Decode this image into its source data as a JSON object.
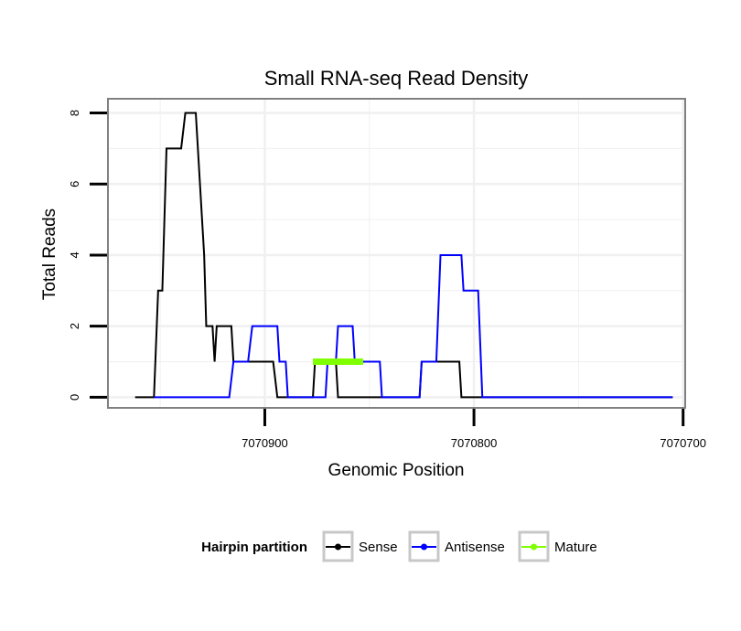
{
  "chart_data": {
    "type": "line",
    "title": "Small RNA-seq Read Density",
    "xlabel": "Genomic Position",
    "ylabel": "Total Reads",
    "x_reversed": true,
    "xlim": [
      7070975,
      7070699
    ],
    "ylim": [
      -0.3,
      8.4
    ],
    "x_ticks": [
      7070900,
      7070800,
      7070700
    ],
    "x_tick_labels": [
      "7070900",
      "7070800",
      "7070700"
    ],
    "y_ticks": [
      0,
      2,
      4,
      6,
      8
    ],
    "y_tick_labels": [
      "0",
      "2",
      "4",
      "6",
      "8"
    ],
    "grid": true,
    "legend_position": "bottom",
    "legend_title": "Hairpin partition",
    "series": [
      {
        "name": "Sense",
        "color": "#000000",
        "points": [
          [
            7070962,
            0
          ],
          [
            7070953,
            0
          ],
          [
            7070951,
            3
          ],
          [
            7070949,
            3
          ],
          [
            7070947,
            7
          ],
          [
            7070940,
            7
          ],
          [
            7070938,
            8
          ],
          [
            7070933,
            8
          ],
          [
            7070931,
            6
          ],
          [
            7070929,
            4
          ],
          [
            7070928,
            2
          ],
          [
            7070925,
            2
          ],
          [
            7070924,
            1
          ],
          [
            7070923,
            2
          ],
          [
            7070916,
            2
          ],
          [
            7070915,
            1
          ],
          [
            7070896,
            1
          ],
          [
            7070894,
            0
          ],
          [
            7070877,
            0
          ],
          [
            7070876,
            1
          ],
          [
            7070866,
            1
          ],
          [
            7070865,
            0
          ],
          [
            7070826,
            0
          ],
          [
            7070825,
            1
          ],
          [
            7070807,
            1
          ],
          [
            7070806,
            0
          ],
          [
            7070705,
            0
          ]
        ]
      },
      {
        "name": "Antisense",
        "color": "#0000ff",
        "points": [
          [
            7070953,
            0
          ],
          [
            7070917,
            0
          ],
          [
            7070915,
            1
          ],
          [
            7070908,
            1
          ],
          [
            7070906,
            2
          ],
          [
            7070894,
            2
          ],
          [
            7070893,
            1
          ],
          [
            7070890,
            1
          ],
          [
            7070889,
            0
          ],
          [
            7070871,
            0
          ],
          [
            7070870,
            1
          ],
          [
            7070866,
            1
          ],
          [
            7070865,
            2
          ],
          [
            7070858,
            2
          ],
          [
            7070857,
            1
          ],
          [
            7070845,
            1
          ],
          [
            7070844,
            0
          ],
          [
            7070826,
            0
          ],
          [
            7070825,
            1
          ],
          [
            7070818,
            1
          ],
          [
            7070816,
            4
          ],
          [
            7070806,
            4
          ],
          [
            7070805,
            3
          ],
          [
            7070798,
            3
          ],
          [
            7070796,
            0
          ],
          [
            7070705,
            0
          ]
        ]
      },
      {
        "name": "Mature",
        "color": "#7fff00",
        "points": [
          [
            7070877,
            1
          ],
          [
            7070853,
            1
          ]
        ]
      }
    ]
  }
}
